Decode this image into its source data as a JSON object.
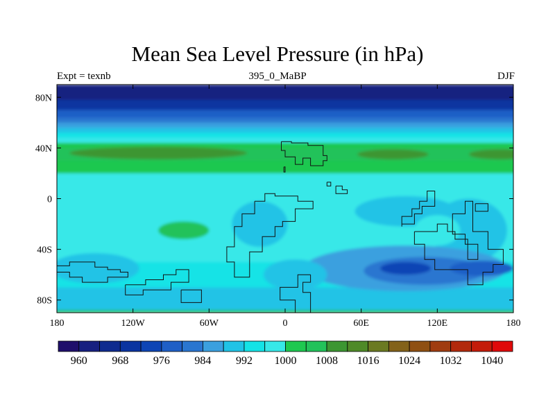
{
  "chart_data": {
    "type": "heatmap",
    "title": "Mean Sea Level Pressure (in hPa)",
    "subtitle_left": "Expt = texnb",
    "subtitle_center": "395_0_MaBP",
    "subtitle_right": "DJF",
    "xlim": [
      -180,
      180
    ],
    "ylim": [
      -90,
      90
    ],
    "x_ticks": [
      {
        "value": -180,
        "label": "180"
      },
      {
        "value": -120,
        "label": "120W"
      },
      {
        "value": -60,
        "label": "60W"
      },
      {
        "value": 0,
        "label": "0"
      },
      {
        "value": 60,
        "label": "60E"
      },
      {
        "value": 120,
        "label": "120E"
      },
      {
        "value": 180,
        "label": "180"
      }
    ],
    "y_ticks": [
      {
        "value": 80,
        "label": "80N"
      },
      {
        "value": 40,
        "label": "40N"
      },
      {
        "value": 0,
        "label": "0"
      },
      {
        "value": -40,
        "label": "40S"
      },
      {
        "value": -80,
        "label": "80S"
      }
    ],
    "colorbar": {
      "levels": [
        956,
        960,
        964,
        968,
        972,
        976,
        980,
        984,
        988,
        992,
        996,
        1000,
        1004,
        1008,
        1012,
        1016,
        1020,
        1024,
        1028,
        1032,
        1036,
        1040,
        1044
      ],
      "colors": [
        "#1f0f6b",
        "#172080",
        "#0f2b8f",
        "#0a34a0",
        "#0d45b5",
        "#1f5fc6",
        "#2a76d0",
        "#3ba0df",
        "#20c3e6",
        "#14e3e6",
        "#37e8e8",
        "#1ec850",
        "#22c25a",
        "#3c9632",
        "#4f8a28",
        "#6b7a22",
        "#83621a",
        "#8f5012",
        "#a03c10",
        "#b22a0c",
        "#c41c0a",
        "#e00a0a"
      ],
      "labels": [
        {
          "value": 960,
          "label": "960"
        },
        {
          "value": 968,
          "label": "968"
        },
        {
          "value": 976,
          "label": "976"
        },
        {
          "value": 984,
          "label": "984"
        },
        {
          "value": 992,
          "label": "992"
        },
        {
          "value": 1000,
          "label": "1000"
        },
        {
          "value": 1008,
          "label": "1008"
        },
        {
          "value": 1016,
          "label": "1016"
        },
        {
          "value": 1024,
          "label": "1024"
        },
        {
          "value": 1032,
          "label": "1032"
        },
        {
          "value": 1040,
          "label": "1040"
        }
      ]
    },
    "field_bands": [
      {
        "lat_from": 90,
        "lat_to": 78,
        "value": 962
      },
      {
        "lat_from": 78,
        "lat_to": 70,
        "value": 970
      },
      {
        "lat_from": 70,
        "lat_to": 64,
        "value": 977
      },
      {
        "lat_from": 64,
        "lat_to": 60,
        "value": 983
      },
      {
        "lat_from": 60,
        "lat_to": 56,
        "value": 986
      },
      {
        "lat_from": 56,
        "lat_to": 52,
        "value": 990
      },
      {
        "lat_from": 52,
        "lat_to": 48,
        "value": 994
      },
      {
        "lat_from": 48,
        "lat_to": 44,
        "value": 998
      },
      {
        "lat_from": 44,
        "lat_to": 40,
        "value": 1002
      },
      {
        "lat_from": 40,
        "lat_to": 30,
        "value": 1006
      },
      {
        "lat_from": 30,
        "lat_to": 20,
        "value": 1001
      },
      {
        "lat_from": 20,
        "lat_to": -50,
        "value": 998
      },
      {
        "lat_from": -50,
        "lat_to": -70,
        "value": 993
      },
      {
        "lat_from": -70,
        "lat_to": -88,
        "value": 988
      },
      {
        "lat_from": -88,
        "lat_to": -90,
        "value": 1006
      }
    ],
    "field_features": [
      {
        "lon": -100,
        "lat": 36,
        "rx": 70,
        "ry": 5,
        "value": 1010
      },
      {
        "lon": 85,
        "lat": 35,
        "rx": 28,
        "ry": 4,
        "value": 1010
      },
      {
        "lon": 170,
        "lat": 35,
        "rx": 25,
        "ry": 4,
        "value": 1010
      },
      {
        "lon": -80,
        "lat": -25,
        "rx": 20,
        "ry": 7,
        "value": 1004
      },
      {
        "lon": -20,
        "lat": -20,
        "rx": 22,
        "ry": 18,
        "value": 990
      },
      {
        "lon": -150,
        "lat": -55,
        "rx": 35,
        "ry": 12,
        "value": 990
      },
      {
        "lon": 95,
        "lat": -10,
        "rx": 40,
        "ry": 12,
        "value": 990
      },
      {
        "lon": 145,
        "lat": -25,
        "rx": 30,
        "ry": 25,
        "value": 988
      },
      {
        "lon": 95,
        "lat": -55,
        "rx": 80,
        "ry": 18,
        "value": 985
      },
      {
        "lon": 110,
        "lat": -57,
        "rx": 48,
        "ry": 11,
        "value": 981
      },
      {
        "lon": 95,
        "lat": -55,
        "rx": 20,
        "ry": 5,
        "value": 974
      },
      {
        "lon": 155,
        "lat": -55,
        "rx": 25,
        "ry": 6,
        "value": 978
      },
      {
        "lon": 120,
        "lat": -25,
        "rx": 18,
        "ry": 12,
        "value": 998
      },
      {
        "lon": 8,
        "lat": -60,
        "rx": 25,
        "ry": 12,
        "value": 988
      }
    ],
    "coastlines": [
      [
        [
          -3,
          45
        ],
        [
          5,
          45
        ],
        [
          5,
          44
        ],
        [
          18,
          44
        ],
        [
          18,
          42
        ],
        [
          30,
          42
        ],
        [
          30,
          34
        ],
        [
          33,
          34
        ],
        [
          33,
          30
        ],
        [
          30,
          30
        ],
        [
          30,
          26
        ],
        [
          20,
          26
        ],
        [
          20,
          32
        ],
        [
          14,
          32
        ],
        [
          14,
          27
        ],
        [
          8,
          27
        ],
        [
          8,
          33
        ],
        [
          0,
          33
        ],
        [
          0,
          38
        ],
        [
          -3,
          38
        ],
        [
          -3,
          45
        ]
      ],
      [
        [
          -1,
          25
        ],
        [
          -1,
          21
        ],
        [
          0,
          21
        ],
        [
          0,
          25
        ],
        [
          -1,
          25
        ]
      ],
      [
        [
          33,
          13
        ],
        [
          36,
          13
        ],
        [
          36,
          10
        ],
        [
          33,
          10
        ],
        [
          33,
          13
        ]
      ],
      [
        [
          40,
          10
        ],
        [
          45,
          10
        ],
        [
          45,
          7
        ],
        [
          49,
          7
        ],
        [
          49,
          4
        ],
        [
          40,
          4
        ],
        [
          40,
          10
        ]
      ],
      [
        [
          -24,
          -2
        ],
        [
          -24,
          -12
        ],
        [
          -34,
          -12
        ],
        [
          -34,
          -22
        ],
        [
          -40,
          -22
        ],
        [
          -40,
          -38
        ],
        [
          -46,
          -38
        ],
        [
          -46,
          -50
        ],
        [
          -40,
          -50
        ],
        [
          -40,
          -62
        ],
        [
          -28,
          -62
        ],
        [
          -28,
          -42
        ],
        [
          -18,
          -42
        ],
        [
          -18,
          -30
        ],
        [
          -8,
          -30
        ],
        [
          -8,
          -22
        ],
        [
          -2,
          -22
        ],
        [
          -2,
          -18
        ],
        [
          8,
          -18
        ],
        [
          8,
          -8
        ],
        [
          22,
          -8
        ],
        [
          22,
          -2
        ],
        [
          10,
          -2
        ],
        [
          10,
          2
        ],
        [
          -8,
          2
        ],
        [
          -8,
          4
        ],
        [
          -16,
          4
        ],
        [
          -16,
          -2
        ],
        [
          -24,
          -2
        ]
      ],
      [
        [
          20,
          -60
        ],
        [
          10,
          -60
        ],
        [
          10,
          -70
        ],
        [
          -4,
          -70
        ],
        [
          -4,
          -80
        ],
        [
          8,
          -80
        ],
        [
          8,
          -90
        ],
        [
          20,
          -90
        ],
        [
          20,
          -74
        ],
        [
          14,
          -74
        ],
        [
          14,
          -66
        ],
        [
          20,
          -66
        ],
        [
          20,
          -60
        ]
      ],
      [
        [
          -180,
          -53
        ],
        [
          -170,
          -53
        ],
        [
          -170,
          -50
        ],
        [
          -150,
          -50
        ],
        [
          -150,
          -54
        ],
        [
          -140,
          -54
        ],
        [
          -140,
          -56
        ],
        [
          -130,
          -56
        ],
        [
          -130,
          -58
        ],
        [
          -124,
          -58
        ],
        [
          -124,
          -62
        ],
        [
          -140,
          -62
        ],
        [
          -140,
          -66
        ],
        [
          -160,
          -66
        ],
        [
          -160,
          -62
        ],
        [
          -170,
          -62
        ],
        [
          -170,
          -58
        ],
        [
          -180,
          -58
        ]
      ],
      [
        [
          -126,
          -68
        ],
        [
          -110,
          -68
        ],
        [
          -110,
          -64
        ],
        [
          -96,
          -64
        ],
        [
          -96,
          -60
        ],
        [
          -86,
          -60
        ],
        [
          -86,
          -56
        ],
        [
          -76,
          -56
        ],
        [
          -76,
          -66
        ],
        [
          -90,
          -66
        ],
        [
          -90,
          -72
        ],
        [
          -112,
          -72
        ],
        [
          -112,
          -76
        ],
        [
          -126,
          -76
        ],
        [
          -126,
          -68
        ]
      ],
      [
        [
          -82,
          -72
        ],
        [
          -66,
          -72
        ],
        [
          -66,
          -82
        ],
        [
          -82,
          -82
        ],
        [
          -82,
          -72
        ]
      ],
      [
        [
          92,
          -22
        ],
        [
          92,
          -14
        ],
        [
          100,
          -14
        ],
        [
          100,
          -8
        ],
        [
          106,
          -8
        ],
        [
          106,
          -2
        ],
        [
          112,
          -2
        ],
        [
          112,
          6
        ],
        [
          118,
          6
        ],
        [
          118,
          -6
        ],
        [
          108,
          -6
        ],
        [
          108,
          -12
        ],
        [
          102,
          -12
        ],
        [
          102,
          -20
        ],
        [
          92,
          -20
        ],
        [
          92,
          -22
        ]
      ],
      [
        [
          102,
          -26
        ],
        [
          120,
          -26
        ],
        [
          120,
          -20
        ],
        [
          128,
          -20
        ],
        [
          128,
          -26
        ],
        [
          134,
          -26
        ],
        [
          134,
          -32
        ],
        [
          144,
          -32
        ],
        [
          144,
          -48
        ],
        [
          152,
          -48
        ],
        [
          152,
          -36
        ],
        [
          142,
          -36
        ],
        [
          142,
          -28
        ],
        [
          132,
          -28
        ],
        [
          132,
          -12
        ],
        [
          142,
          -12
        ],
        [
          142,
          -2
        ],
        [
          148,
          -2
        ],
        [
          148,
          -26
        ],
        [
          160,
          -26
        ],
        [
          160,
          -40
        ],
        [
          172,
          -40
        ],
        [
          172,
          -52
        ],
        [
          164,
          -52
        ],
        [
          164,
          -58
        ],
        [
          156,
          -58
        ],
        [
          156,
          -68
        ],
        [
          144,
          -68
        ],
        [
          144,
          -56
        ],
        [
          118,
          -56
        ],
        [
          118,
          -48
        ],
        [
          110,
          -48
        ],
        [
          110,
          -36
        ],
        [
          102,
          -36
        ],
        [
          102,
          -26
        ]
      ],
      [
        [
          150,
          -4
        ],
        [
          160,
          -4
        ],
        [
          160,
          -10
        ],
        [
          150,
          -10
        ],
        [
          150,
          -4
        ]
      ]
    ]
  }
}
